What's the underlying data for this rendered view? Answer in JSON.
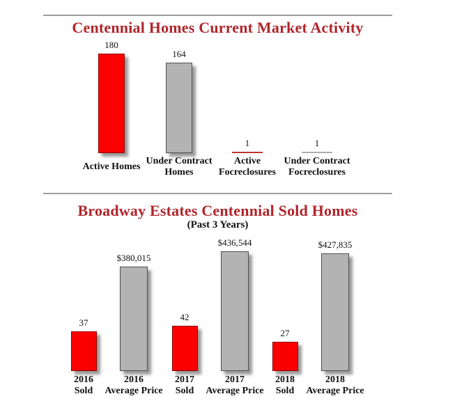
{
  "page": {
    "background": "#ffffff",
    "title_color": "#b0262c",
    "divider_color": "#9c9c9c"
  },
  "palette": {
    "red": {
      "fill": "#fb0000",
      "border": "#8f0000",
      "thin": "#c23434"
    },
    "gray": {
      "fill": "#b3b3b3",
      "border": "#4d4d4d",
      "thin": "#adadad"
    }
  },
  "chart_data": [
    {
      "type": "bar",
      "title": "Centennial Homes Current Market Activity",
      "grid": false,
      "legend": false,
      "ylim": [
        0,
        200
      ],
      "points": [
        {
          "category_lines": [
            "Active Homes"
          ],
          "series": "count",
          "value": 180,
          "value_label": "180",
          "color": "red"
        },
        {
          "category_lines": [
            "Under Contract",
            "Homes"
          ],
          "series": "count",
          "value": 164,
          "value_label": "164",
          "color": "gray"
        },
        {
          "category_lines": [
            "Active",
            "Focreclosures"
          ],
          "series": "count",
          "value": 1,
          "value_label": "1",
          "color": "red"
        },
        {
          "category_lines": [
            "Under Contract",
            "Focreclosures"
          ],
          "series": "count",
          "value": 1,
          "value_label": "1",
          "color": "gray"
        }
      ]
    },
    {
      "type": "bar",
      "title": "Broadway Estates Centennial Sold Homes",
      "subtitle": "(Past 3 Years)",
      "grid": false,
      "legend": false,
      "ylim_sold": [
        0,
        50
      ],
      "ylim_price": [
        0,
        450000
      ],
      "points": [
        {
          "category_lines": [
            "2016",
            "Sold"
          ],
          "series": "sold",
          "value": 37,
          "value_label": "37",
          "color": "red"
        },
        {
          "category_lines": [
            "2016",
            "Average Price"
          ],
          "series": "price",
          "value": 380015,
          "value_label": "$380,015",
          "color": "gray"
        },
        {
          "category_lines": [
            "2017",
            "Sold"
          ],
          "series": "sold",
          "value": 42,
          "value_label": "42",
          "color": "red"
        },
        {
          "category_lines": [
            "2017",
            "Average Price"
          ],
          "series": "price",
          "value": 436544,
          "value_label": "$436,544",
          "color": "gray"
        },
        {
          "category_lines": [
            "2018",
            "Sold"
          ],
          "series": "sold",
          "value": 27,
          "value_label": "27",
          "color": "red"
        },
        {
          "category_lines": [
            "2018",
            "Average Price"
          ],
          "series": "price",
          "value": 427835,
          "value_label": "$427,835",
          "color": "gray"
        }
      ]
    }
  ]
}
